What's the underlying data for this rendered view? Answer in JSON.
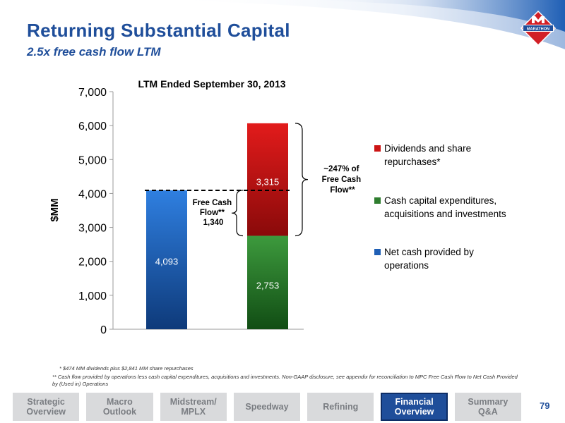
{
  "header": {
    "title": "Returning Substantial Capital",
    "subtitle": "2.5x free cash flow LTM",
    "logo_text": "MARATHON"
  },
  "chart_data": {
    "type": "bar",
    "title": "LTM Ended September 30, 2013",
    "ylabel": "$MM",
    "xlabel": "",
    "ylim": [
      0,
      7000
    ],
    "yticks": [
      0,
      1000,
      2000,
      3000,
      4000,
      5000,
      6000,
      7000
    ],
    "ytick_labels": [
      "0",
      "1,000",
      "2,000",
      "3,000",
      "4,000",
      "5,000",
      "6,000",
      "7,000"
    ],
    "stacked": true,
    "bars": [
      {
        "segments": [
          {
            "series": "Net cash provided by operations",
            "value": 4093,
            "label": "4,093",
            "color": "#1f5fb5"
          }
        ]
      },
      {
        "segments": [
          {
            "series": "Cash capital expenditures, acquisitions and investments",
            "value": 2753,
            "label": "2,753",
            "color": "#2e7d2e"
          },
          {
            "series": "Dividends and share repurchases*",
            "value": 3315,
            "label": "3,315",
            "color": "#cc1414"
          }
        ]
      }
    ],
    "legend": [
      {
        "name": "Dividends and share repurchases*",
        "color": "#cc1414"
      },
      {
        "name": "Cash capital expenditures, acquisitions and investments",
        "color": "#2e7d2e"
      },
      {
        "name": "Net cash provided by operations",
        "color": "#1f5fb5"
      }
    ],
    "legend_position": "right",
    "grid": false,
    "reference_line": {
      "value": 4093,
      "style": "dashed"
    },
    "annotations": {
      "free_cash_flow": [
        "Free Cash",
        "Flow**",
        "1,340"
      ],
      "fcf_ratio": [
        "~247% of",
        "Free Cash",
        "Flow**"
      ]
    }
  },
  "footnotes": [
    "* $474 MM dividends plus $2,841 MM share repurchases",
    "** Cash flow provided by operations less cash capital expenditures, acquisitions and investments.  Non-GAAP disclosure, see appendix for reconciliation to MPC Free Cash Flow to Net Cash Provided by (Used in) Operations"
  ],
  "nav": {
    "items": [
      {
        "label": "Strategic\nOverview",
        "active": false
      },
      {
        "label": "Macro\nOutlook",
        "active": false
      },
      {
        "label": "Midstream/\nMPLX",
        "active": false
      },
      {
        "label": "Speedway",
        "active": false
      },
      {
        "label": "Refining",
        "active": false
      },
      {
        "label": "Financial\nOverview",
        "active": true
      },
      {
        "label": "Summary\nQ&A",
        "active": false
      }
    ]
  },
  "page_number": "79",
  "colors": {
    "brand_blue": "#1f4e9a",
    "marathon_red": "#d21f26"
  }
}
